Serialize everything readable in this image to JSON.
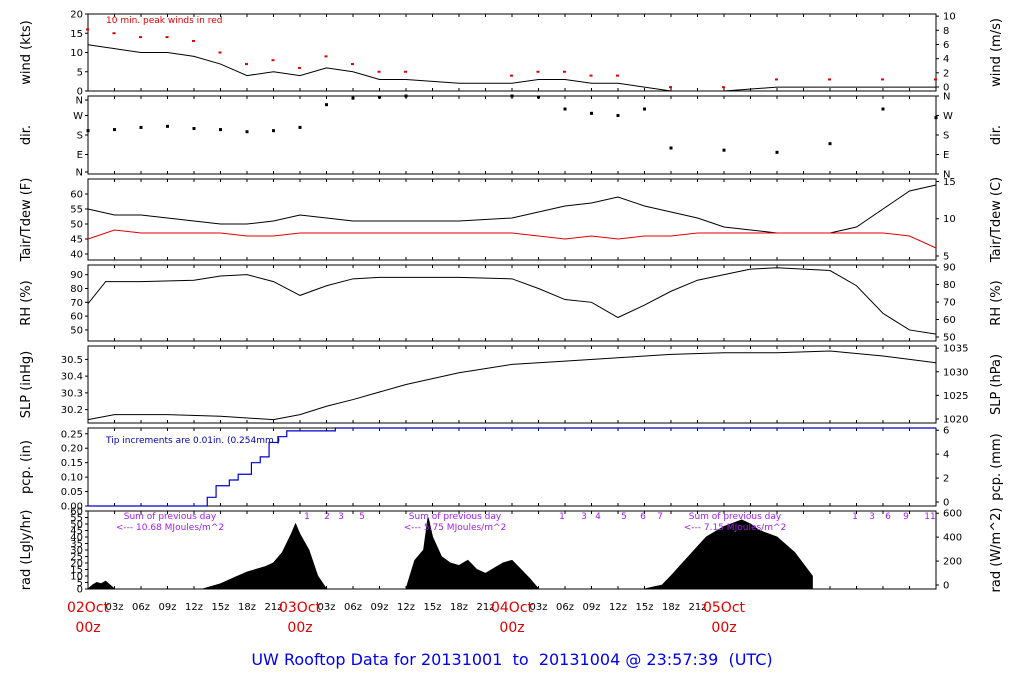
{
  "title": "UW Rooftop Data for 20131001  to  20131004 @ 23:57:39  (UTC)",
  "colors": {
    "peak": "#e00000",
    "precip": "#0000cc",
    "note_blue": "#0000aa",
    "rad_note": "#a020f0",
    "title": "#0000ee",
    "day_label": "#e00000"
  },
  "time_axis": {
    "hour_labels": [
      "03z",
      "06z",
      "09z",
      "12z",
      "15z",
      "18z",
      "21z",
      "03z",
      "06z",
      "09z",
      "12z",
      "15z",
      "18z",
      "21z",
      "03z",
      "06z",
      "09z",
      "12z",
      "15z",
      "18z",
      "21z"
    ],
    "day_labels": [
      {
        "date": "02Oct",
        "hour": "00z"
      },
      {
        "date": "03Oct",
        "hour": "00z"
      },
      {
        "date": "04Oct",
        "hour": "00z"
      },
      {
        "date": "05Oct",
        "hour": "00z"
      }
    ]
  },
  "chart_data": [
    {
      "type": "line",
      "id": "wind",
      "ylabel": "wind (kts)",
      "y2label": "wind (m/s)",
      "ylim": [
        0,
        20
      ],
      "yticks": [
        "0",
        "5",
        "10",
        "15",
        "20"
      ],
      "y2ticks": [
        "0",
        "2",
        "4",
        "6",
        "8",
        "10"
      ],
      "annotation": "10 min. peak winds in red",
      "series": [
        {
          "color": "#000000",
          "x_hours": [
            0,
            3,
            6,
            9,
            12,
            15,
            18,
            21,
            24,
            27,
            30,
            33,
            36,
            42,
            48,
            51,
            54,
            57,
            60,
            66,
            72,
            78,
            84,
            90,
            96
          ],
          "values": [
            12,
            11,
            10,
            10,
            9,
            7,
            4,
            5,
            4,
            6,
            5,
            3,
            3,
            2,
            2,
            3,
            3,
            2,
            2,
            0,
            0,
            1,
            1,
            1,
            1
          ]
        },
        {
          "color": "#e00000",
          "x_hours": [
            0,
            3,
            6,
            9,
            12,
            15,
            18,
            21,
            24,
            27,
            30,
            33,
            36,
            48,
            51,
            54,
            57,
            60,
            66,
            72,
            78,
            84,
            90,
            96
          ],
          "values": [
            16,
            15,
            14,
            14,
            13,
            10,
            7,
            8,
            6,
            9,
            7,
            5,
            5,
            4,
            5,
            5,
            4,
            4,
            1,
            1,
            3,
            3,
            3,
            3
          ]
        }
      ]
    },
    {
      "type": "scatter",
      "id": "dir",
      "ylabel": "dir.",
      "ylim": [
        0,
        360
      ],
      "yticks": [
        "N",
        "E",
        "S",
        "W",
        "N"
      ],
      "series": [
        {
          "color": "#000000",
          "x_hours": [
            0,
            3,
            6,
            9,
            12,
            15,
            18,
            21,
            24,
            27,
            30,
            33,
            36,
            48,
            51,
            54,
            57,
            60,
            63,
            66,
            72,
            78,
            84,
            90,
            96
          ],
          "values": [
            200,
            205,
            215,
            220,
            210,
            205,
            195,
            200,
            215,
            320,
            350,
            355,
            360,
            360,
            355,
            300,
            280,
            270,
            300,
            120,
            110,
            100,
            140,
            300,
            260
          ]
        }
      ]
    },
    {
      "type": "line",
      "id": "temp",
      "ylabel": "Tair/Tdew (F)",
      "y2label": "Tair/Tdew (C)",
      "ylim": [
        38,
        65
      ],
      "yticks": [
        "40",
        "45",
        "50",
        "55",
        "60"
      ],
      "y2ticks": [
        "5",
        "10",
        "15"
      ],
      "series": [
        {
          "color": "#000000",
          "x_hours": [
            0,
            3,
            6,
            9,
            12,
            15,
            18,
            21,
            24,
            27,
            30,
            33,
            36,
            42,
            48,
            51,
            54,
            57,
            60,
            63,
            66,
            69,
            72,
            78,
            84,
            87,
            90,
            93,
            96
          ],
          "values": [
            55,
            53,
            53,
            52,
            51,
            50,
            50,
            51,
            53,
            52,
            51,
            51,
            51,
            51,
            52,
            54,
            56,
            57,
            59,
            56,
            54,
            52,
            49,
            47,
            47,
            49,
            55,
            61,
            63
          ]
        },
        {
          "color": "#e00000",
          "x_hours": [
            0,
            3,
            6,
            9,
            12,
            15,
            18,
            21,
            24,
            27,
            30,
            33,
            36,
            42,
            48,
            51,
            54,
            57,
            60,
            63,
            66,
            69,
            72,
            78,
            84,
            87,
            90,
            93,
            96
          ],
          "values": [
            45,
            48,
            47,
            47,
            47,
            47,
            46,
            46,
            47,
            47,
            47,
            47,
            47,
            47,
            47,
            46,
            45,
            46,
            45,
            46,
            46,
            47,
            47,
            47,
            47,
            47,
            47,
            46,
            42
          ]
        }
      ]
    },
    {
      "type": "line",
      "id": "rh",
      "ylabel": "RH (%)",
      "y2label": "RH (%)",
      "ylim": [
        42,
        97
      ],
      "yticks": [
        "50",
        "60",
        "70",
        "80",
        "90"
      ],
      "y2ticks": [
        "50",
        "60",
        "70",
        "80",
        "90"
      ],
      "series": [
        {
          "color": "#000000",
          "x_hours": [
            0,
            2,
            6,
            12,
            15,
            18,
            21,
            24,
            27,
            30,
            33,
            36,
            42,
            48,
            51,
            54,
            57,
            60,
            63,
            66,
            69,
            72,
            75,
            78,
            84,
            87,
            90,
            93,
            96
          ],
          "values": [
            69,
            85,
            85,
            86,
            89,
            90,
            85,
            75,
            82,
            87,
            88,
            88,
            88,
            87,
            80,
            72,
            70,
            59,
            68,
            78,
            86,
            90,
            94,
            95,
            93,
            82,
            62,
            50,
            47
          ]
        }
      ]
    },
    {
      "type": "line",
      "id": "slp",
      "ylabel": "SLP (inHg)",
      "y2label": "SLP (hPa)",
      "ylim": [
        30.12,
        30.58
      ],
      "yticks": [
        "30.2",
        "30.3",
        "30.4",
        "30.5"
      ],
      "y2ticks": [
        "1020",
        "1025",
        "1030",
        "1035"
      ],
      "series": [
        {
          "color": "#000000",
          "x_hours": [
            0,
            3,
            9,
            15,
            21,
            24,
            27,
            30,
            36,
            42,
            48,
            54,
            60,
            66,
            72,
            78,
            84,
            90,
            96
          ],
          "values": [
            30.14,
            30.17,
            30.17,
            30.16,
            30.14,
            30.17,
            30.22,
            30.26,
            30.35,
            30.42,
            30.47,
            30.49,
            30.51,
            30.53,
            30.54,
            30.54,
            30.55,
            30.52,
            30.48
          ]
        }
      ]
    },
    {
      "type": "line",
      "id": "pcp",
      "ylabel": "pcp. (in)",
      "y2label": "pcp. (mm)",
      "ylim": [
        0,
        0.27
      ],
      "yticks": [
        "0.00",
        "0.05",
        "0.10",
        "0.15",
        "0.20",
        "0.25"
      ],
      "y2ticks": [
        "0",
        "2",
        "4",
        "6"
      ],
      "annotation": "Tip increments are 0.01in. (0.254mm.)",
      "series": [
        {
          "color": "#0000cc",
          "x_hours": [
            0,
            12.5,
            13.5,
            14.5,
            16,
            17,
            18.5,
            19.5,
            20.5,
            21.5,
            22.5,
            24,
            25,
            27.5,
            28,
            30,
            96
          ],
          "values": [
            0,
            0,
            0.03,
            0.07,
            0.09,
            0.11,
            0.15,
            0.17,
            0.22,
            0.24,
            0.26,
            0.26,
            0.26,
            0.26,
            0.27,
            0.27,
            0.27
          ]
        }
      ]
    },
    {
      "type": "area",
      "id": "rad",
      "ylabel": "rad (Lgly/hr)",
      "y2label": "rad (W/m^2)",
      "ylim": [
        0,
        60
      ],
      "yticks": [
        "0",
        "5",
        "10",
        "15",
        "20",
        "25",
        "30",
        "35",
        "40",
        "45",
        "50",
        "55",
        "60"
      ],
      "y2ticks": [
        "0",
        "200",
        "400",
        "600"
      ],
      "day_sums": [
        {
          "label": "Sum of previous day",
          "value": "<--- 10.68 MJoules/m^2",
          "hours": [
            "1",
            "2",
            "3",
            "5"
          ]
        },
        {
          "label": "Sum of previous day",
          "value": "<--- 5.75 MJoules/m^2",
          "hours": [
            "1",
            "3",
            "4",
            "5",
            "6",
            "7"
          ]
        },
        {
          "label": "Sum of previous day",
          "value": "<--- 7.15 MJoules/m^2",
          "hours": [
            "1",
            "3",
            "6",
            "9",
            "11"
          ]
        }
      ],
      "series": [
        {
          "color": "#000000",
          "x_hours": [
            0,
            0.5,
            1,
            1.5,
            2,
            2.5,
            3,
            12,
            13,
            15,
            17,
            18,
            19,
            20,
            21,
            22,
            22.5,
            23,
            23.5,
            24,
            25,
            26,
            27,
            36,
            37,
            38,
            38.5,
            39,
            40,
            41,
            42,
            43,
            44,
            45,
            46,
            47,
            48,
            49,
            50,
            51,
            60,
            61,
            63,
            65,
            66,
            68,
            70,
            72,
            74,
            75,
            76,
            78,
            80,
            82
          ],
          "values": [
            0,
            3,
            5,
            4,
            6,
            3,
            0,
            0,
            0,
            4,
            10,
            13,
            15,
            17,
            20,
            28,
            35,
            42,
            50,
            42,
            30,
            10,
            0,
            0,
            22,
            30,
            55,
            40,
            25,
            20,
            18,
            22,
            15,
            12,
            16,
            20,
            22,
            15,
            8,
            0,
            0,
            0,
            0,
            3,
            10,
            25,
            40,
            48,
            53,
            50,
            45,
            40,
            28,
            10
          ]
        }
      ]
    }
  ]
}
